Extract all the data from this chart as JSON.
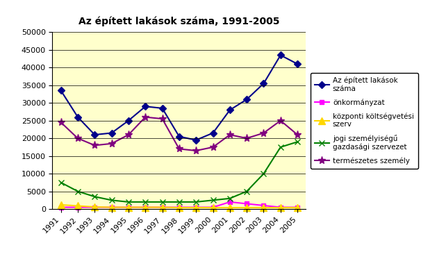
{
  "title": "Az épített lakások száma, 1991-2005",
  "years": [
    1991,
    1992,
    1993,
    1994,
    1995,
    1996,
    1997,
    1998,
    1999,
    2000,
    2001,
    2002,
    2003,
    2004,
    2005
  ],
  "series": [
    {
      "name": "Az épített lakások\nszáma",
      "values": [
        33500,
        26000,
        21000,
        21500,
        25000,
        29000,
        28500,
        20500,
        19500,
        21500,
        28000,
        31000,
        35500,
        43500,
        41000
      ],
      "color": "#00008B",
      "marker": "D",
      "markersize": 5,
      "linewidth": 1.5,
      "markerfacecolor": "#00008B"
    },
    {
      "name": "önkormányzat",
      "values": [
        500,
        500,
        500,
        500,
        500,
        500,
        500,
        500,
        500,
        500,
        2000,
        1500,
        1000,
        500,
        500
      ],
      "color": "#FF00FF",
      "marker": "s",
      "markersize": 5,
      "linewidth": 1.5,
      "markerfacecolor": "#FF00FF"
    },
    {
      "name": "központi költségvetési\nszerv",
      "values": [
        1200,
        900,
        600,
        500,
        500,
        500,
        500,
        400,
        400,
        400,
        400,
        400,
        400,
        400,
        400
      ],
      "color": "#FFD700",
      "marker": "^",
      "markersize": 7,
      "linewidth": 1.5,
      "markerfacecolor": "#FFD700"
    },
    {
      "name": "jogi személyiségű\ngazdasági szervezet",
      "values": [
        7500,
        5000,
        3500,
        2500,
        2000,
        2000,
        2000,
        2000,
        2000,
        2500,
        3000,
        5000,
        10000,
        17500,
        19000
      ],
      "color": "#008000",
      "marker": "x",
      "markersize": 6,
      "linewidth": 1.5,
      "markerfacecolor": "#008000"
    },
    {
      "name": "természetes személy",
      "values": [
        24500,
        20000,
        18000,
        18500,
        21000,
        26000,
        25500,
        17000,
        16500,
        17500,
        21000,
        20000,
        21500,
        25000,
        21000
      ],
      "color": "#800080",
      "marker": "*",
      "markersize": 8,
      "linewidth": 1.5,
      "markerfacecolor": "#800080"
    }
  ],
  "ylim": [
    0,
    50000
  ],
  "yticks": [
    0,
    5000,
    10000,
    15000,
    20000,
    25000,
    30000,
    35000,
    40000,
    45000,
    50000
  ],
  "plot_area_color": "#FFFFCC",
  "fig_background": "#FFFFFF",
  "title_fontsize": 10,
  "axis_fontsize": 8
}
